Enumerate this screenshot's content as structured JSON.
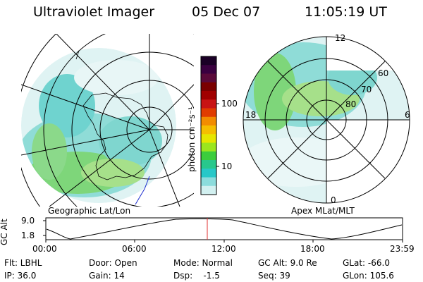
{
  "header": {
    "instrument": "Ultraviolet Imager",
    "date": "05 Dec 07",
    "time": "11:05:19 UT"
  },
  "colorbar": {
    "unit_label": "photon cm⁻²s⁻¹",
    "ticks": [
      "100",
      "10"
    ],
    "colors_top_to_bottom": [
      "#1a0026",
      "#3a0040",
      "#5a0a3a",
      "#7a0000",
      "#a00000",
      "#c81414",
      "#e03c00",
      "#f28c00",
      "#f5be00",
      "#e6e600",
      "#9be61e",
      "#3ccd3c",
      "#28c88c",
      "#28c8c8",
      "#8cdcdc",
      "#d2f0f0"
    ]
  },
  "left_map": {
    "label": "Geographic Lat/Lon"
  },
  "right_map": {
    "label": "Apex MLat/MLT",
    "lat_labels": [
      "60",
      "70",
      "80"
    ],
    "mlt_labels": {
      "top": "12",
      "left": "18",
      "right": "6",
      "bottom": "0"
    }
  },
  "altitude_plot": {
    "ylabel": "GC Alt",
    "yticks": [
      "9.0",
      "1.8"
    ],
    "xticks": [
      "00:00",
      "06:00",
      "12:00",
      "18:00",
      "23:59"
    ]
  },
  "info": {
    "flt": "Flt: LBHL",
    "ip": "IP: 36.0",
    "door": "Door: Open",
    "gain": "Gain: 14",
    "mode": "Mode: Normal",
    "dsp": "Dsp:    -1.5",
    "gcalt": "GC Alt: 9.0 Re",
    "seq": "Seq: 39",
    "glat": "GLat: -66.0",
    "glon": "GLon: 105.6"
  }
}
